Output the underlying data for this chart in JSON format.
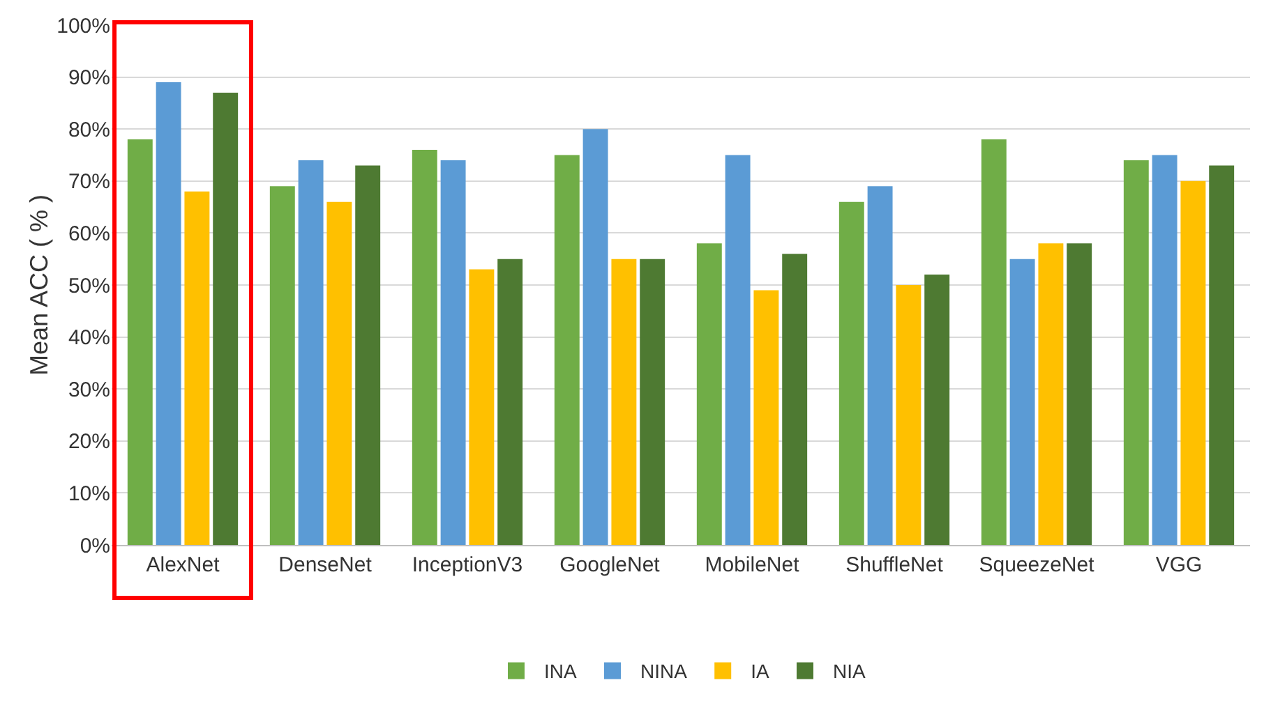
{
  "chart_data": {
    "type": "bar",
    "ylabel": "Mean ACC ( % )",
    "categories": [
      "AlexNet",
      "DenseNet",
      "InceptionV3",
      "GoogleNet",
      "MobileNet",
      "ShuffleNet",
      "SqueezeNet",
      "VGG"
    ],
    "series": [
      {
        "name": "INA",
        "color": "#70ad47",
        "values": [
          78,
          69,
          76,
          75,
          58,
          66,
          78,
          74
        ]
      },
      {
        "name": "NINA",
        "color": "#5b9bd5",
        "values": [
          89,
          74,
          74,
          80,
          75,
          69,
          55,
          75
        ]
      },
      {
        "name": "IA",
        "color": "#ffc000",
        "values": [
          68,
          66,
          53,
          55,
          49,
          50,
          58,
          70
        ]
      },
      {
        "name": "NIA",
        "color": "#4e7a32",
        "values": [
          87,
          73,
          55,
          55,
          56,
          52,
          58,
          73
        ]
      }
    ],
    "ylim": [
      0,
      100
    ],
    "yticks": [
      {
        "value": 0,
        "label": "0%"
      },
      {
        "value": 10,
        "label": "10%"
      },
      {
        "value": 20,
        "label": "20%"
      },
      {
        "value": 30,
        "label": "30%"
      },
      {
        "value": 40,
        "label": "40%"
      },
      {
        "value": 50,
        "label": "50%"
      },
      {
        "value": 60,
        "label": "60%"
      },
      {
        "value": 70,
        "label": "70%"
      },
      {
        "value": 80,
        "label": "80%"
      },
      {
        "value": 90,
        "label": "90%"
      },
      {
        "value": 100,
        "label": "100%"
      }
    ],
    "grid": "y",
    "legend": "bottom"
  }
}
